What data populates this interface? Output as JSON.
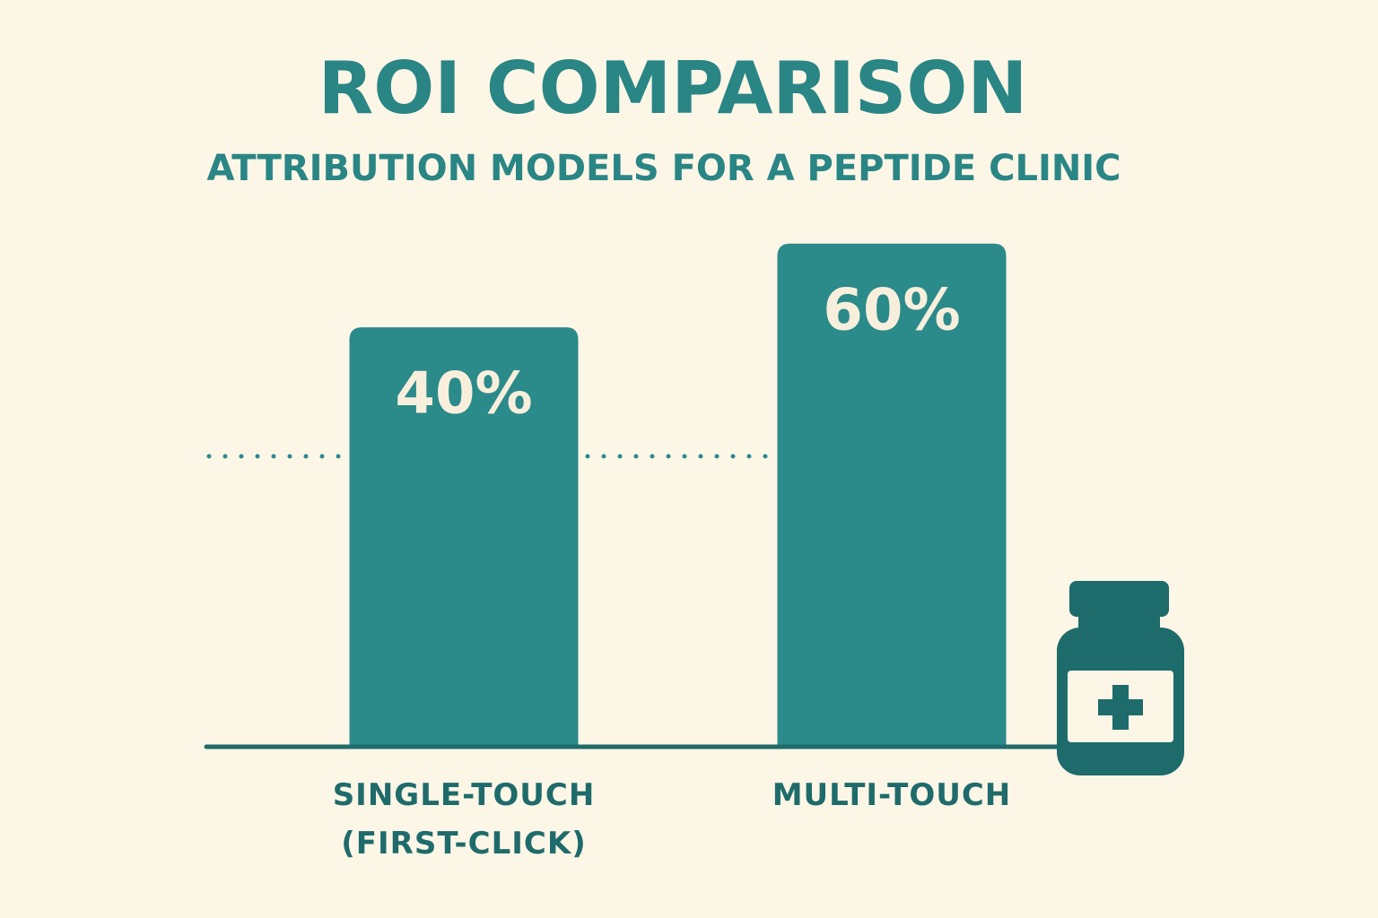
{
  "chart_data": {
    "type": "bar",
    "title": "ROI COMPARISON",
    "subtitle": "ATTRIBUTION MODELS FOR A PEPTIDE CLINIC",
    "categories": [
      "SINGLE-TOUCH (FIRST-CLICK)",
      "MULTI-TOUCH"
    ],
    "values": [
      40,
      60
    ],
    "value_labels": [
      "40%",
      "60%"
    ],
    "color": "#2b8a8a",
    "ylim": [
      -60,
      70
    ]
  }
}
